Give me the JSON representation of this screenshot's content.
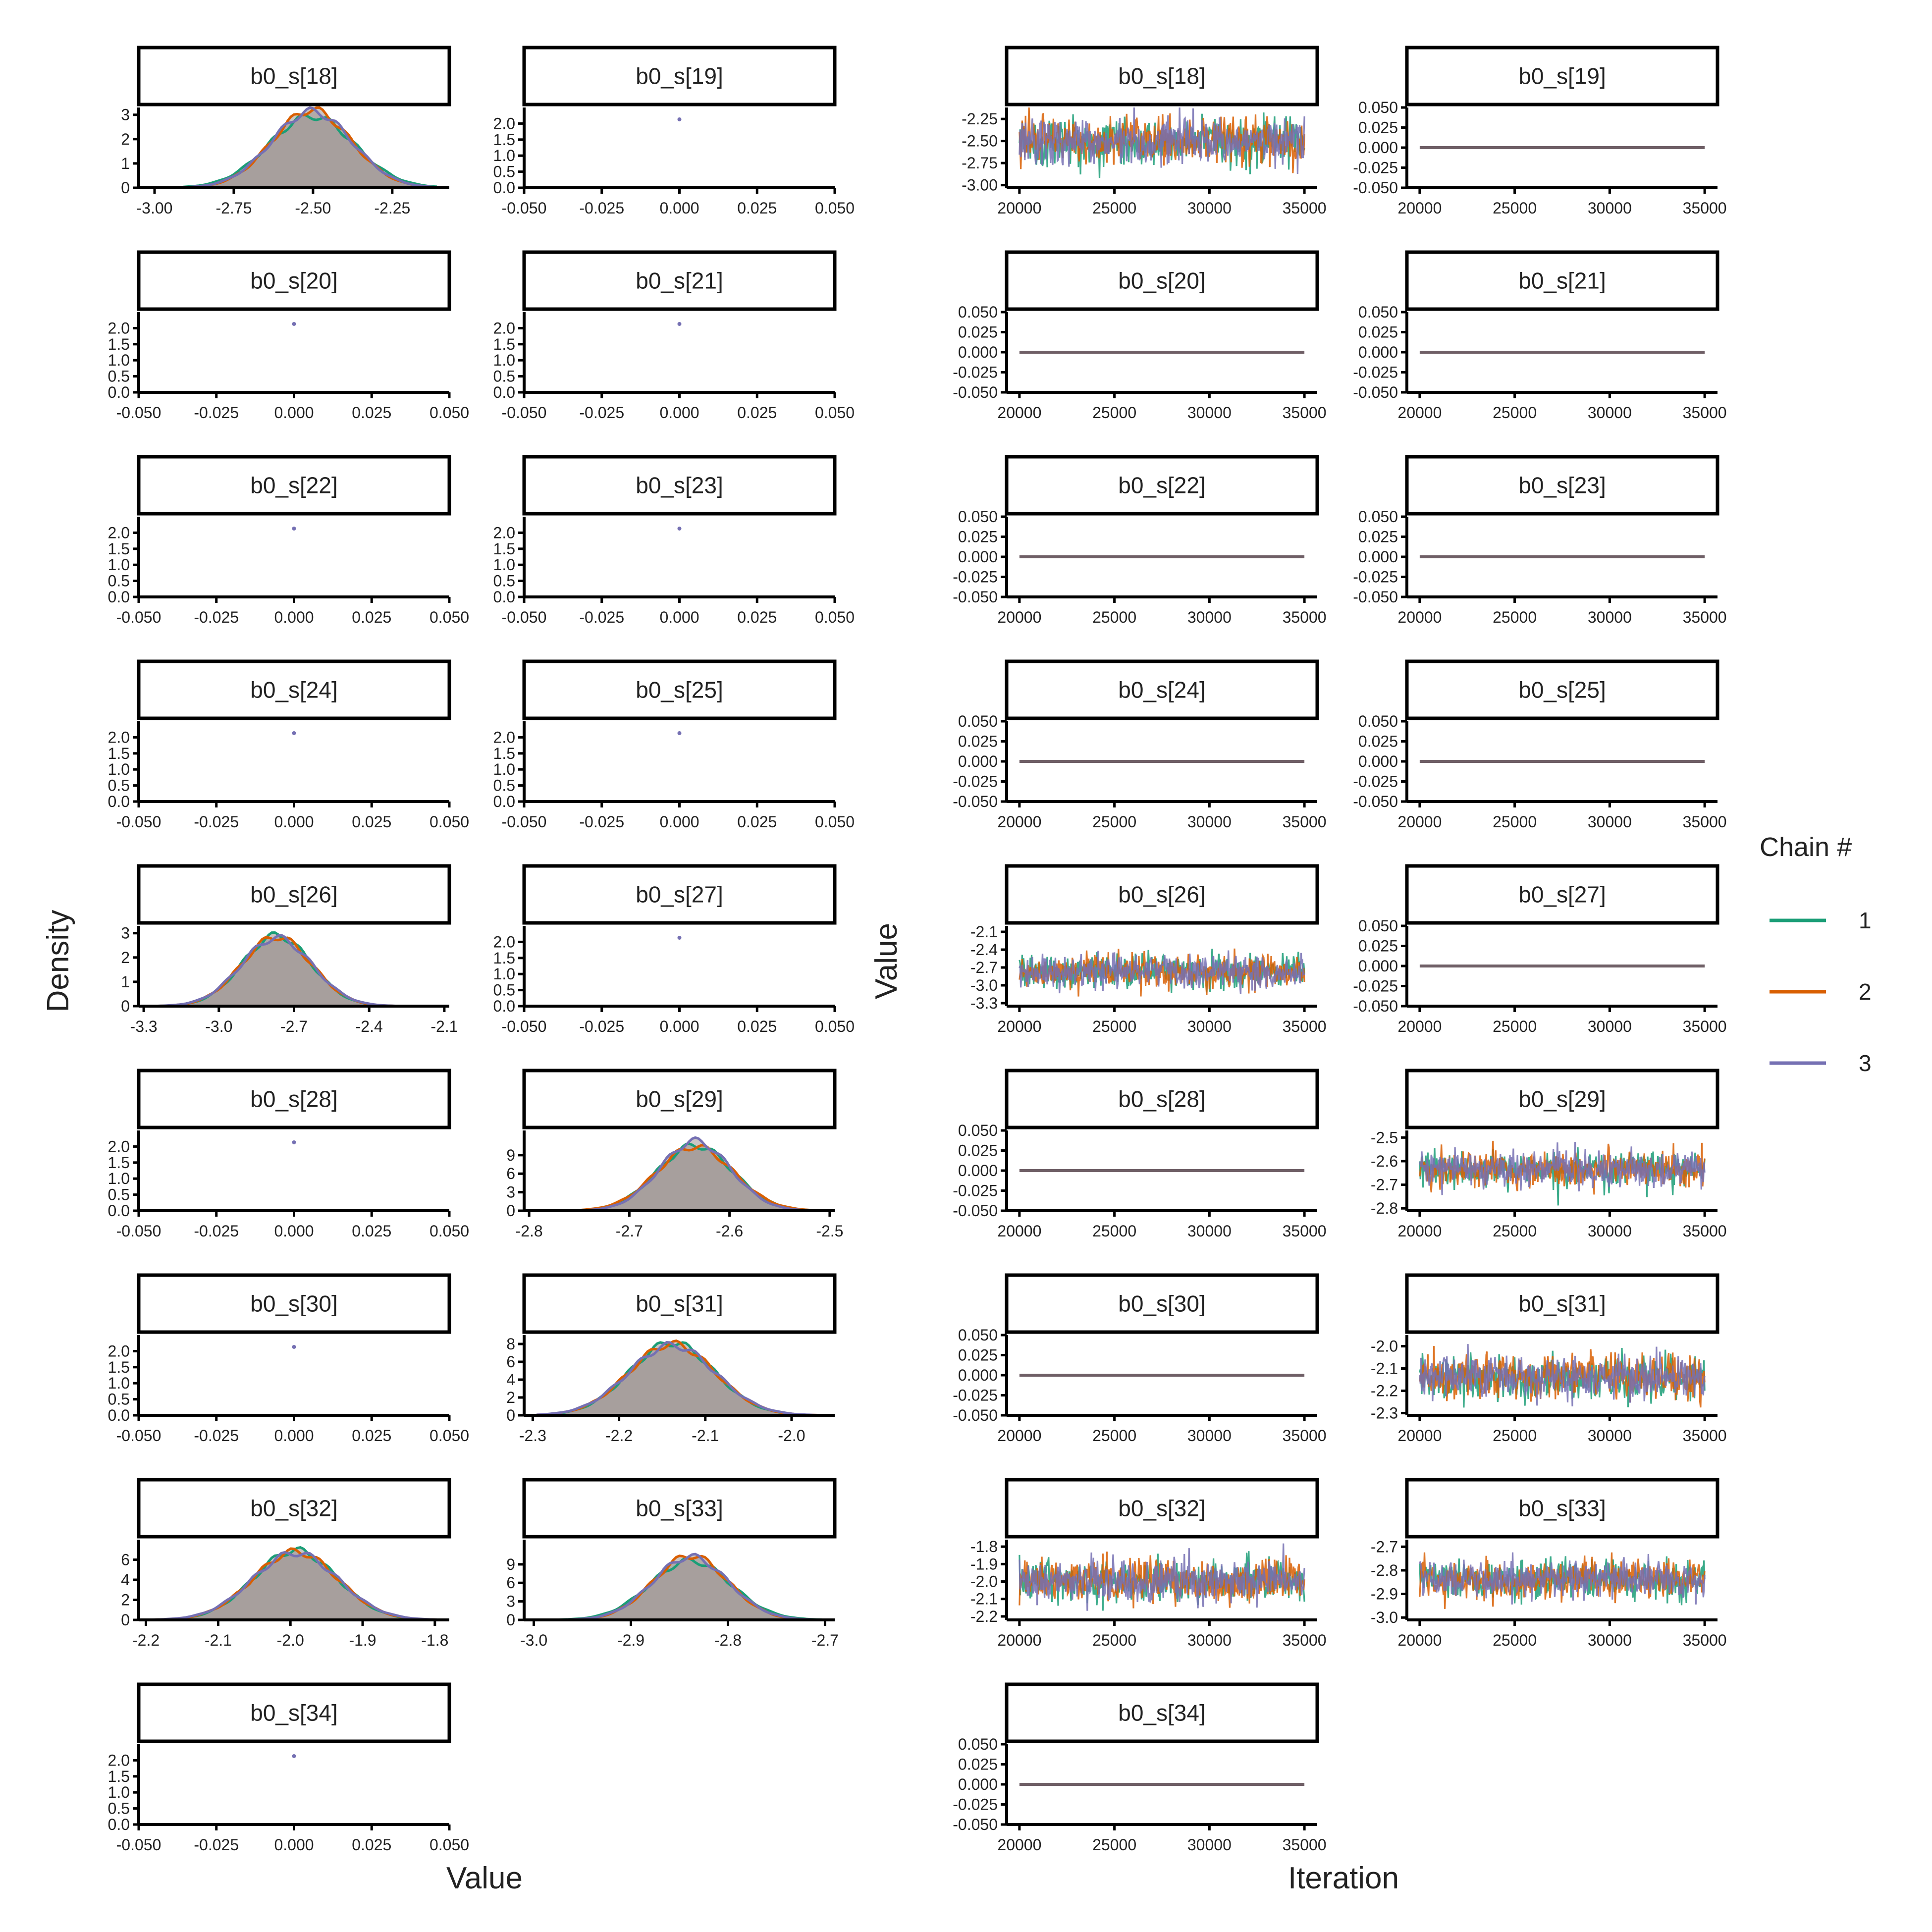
{
  "figure": {
    "density_xlabel": "Value",
    "density_ylabel": "Density",
    "trace_xlabel": "Iteration",
    "trace_ylabel": "Value",
    "legend_title": "Chain #",
    "chains": [
      {
        "label": "1",
        "color": "#1b9e77"
      },
      {
        "label": "2",
        "color": "#d95f02"
      },
      {
        "label": "3",
        "color": "#7570b3"
      }
    ],
    "fill_color": "#9e9694"
  },
  "chart_data": {
    "type": "mcmc-diagnostics",
    "parameters": [
      {
        "name": "b0_s[18]",
        "constant": false,
        "mean": -2.5,
        "sd": 0.13,
        "density_xlim": [
          -3.05,
          -2.07
        ],
        "density_xticks": [
          "-3.00",
          "-2.75",
          "-2.50",
          "-2.25"
        ],
        "density_ylim": [
          0,
          3.3
        ],
        "density_yticks": [
          "0",
          "1",
          "2",
          "3"
        ],
        "trace_ylim": [
          -3.03,
          -2.12
        ],
        "trace_yticks": [
          "-3.00",
          "-2.75",
          "-2.50",
          "-2.25"
        ]
      },
      {
        "name": "b0_s[19]",
        "constant": true
      },
      {
        "name": "b0_s[20]",
        "constant": true
      },
      {
        "name": "b0_s[21]",
        "constant": true
      },
      {
        "name": "b0_s[22]",
        "constant": true
      },
      {
        "name": "b0_s[23]",
        "constant": true
      },
      {
        "name": "b0_s[24]",
        "constant": true
      },
      {
        "name": "b0_s[25]",
        "constant": true
      },
      {
        "name": "b0_s[26]",
        "constant": false,
        "mean": -2.77,
        "sd": 0.14,
        "density_xlim": [
          -3.32,
          -2.08
        ],
        "density_xticks": [
          "-3.3",
          "-3.0",
          "-2.7",
          "-2.4",
          "-2.1"
        ],
        "density_ylim": [
          0,
          3.3
        ],
        "density_yticks": [
          "0",
          "1",
          "2",
          "3"
        ],
        "trace_ylim": [
          -3.35,
          -2.0
        ],
        "trace_yticks": [
          "-3.3",
          "-3.0",
          "-2.7",
          "-2.4",
          "-2.1"
        ]
      },
      {
        "name": "b0_s[27]",
        "constant": true
      },
      {
        "name": "b0_s[28]",
        "constant": true
      },
      {
        "name": "b0_s[29]",
        "constant": false,
        "mean": -2.635,
        "sd": 0.037,
        "density_xlim": [
          -2.805,
          -2.495
        ],
        "density_xticks": [
          "-2.8",
          "-2.7",
          "-2.6",
          "-2.5"
        ],
        "density_ylim": [
          0,
          13
        ],
        "density_yticks": [
          "0",
          "3",
          "6",
          "9"
        ],
        "trace_ylim": [
          -2.81,
          -2.47
        ],
        "trace_yticks": [
          "-2.8",
          "-2.7",
          "-2.6",
          "-2.5"
        ]
      },
      {
        "name": "b0_s[30]",
        "constant": true
      },
      {
        "name": "b0_s[31]",
        "constant": false,
        "mean": -2.14,
        "sd": 0.05,
        "density_xlim": [
          -2.31,
          -1.95
        ],
        "density_xticks": [
          "-2.3",
          "-2.2",
          "-2.1",
          "-2.0"
        ],
        "density_ylim": [
          0,
          9
        ],
        "density_yticks": [
          "0",
          "2",
          "4",
          "6",
          "8"
        ],
        "trace_ylim": [
          -2.31,
          -1.95
        ],
        "trace_yticks": [
          "-2.3",
          "-2.2",
          "-2.1",
          "-2.0"
        ]
      },
      {
        "name": "b0_s[32]",
        "constant": false,
        "mean": -1.995,
        "sd": 0.06,
        "density_xlim": [
          -2.21,
          -1.78
        ],
        "density_xticks": [
          "-2.2",
          "-2.1",
          "-2.0",
          "-1.9",
          "-1.8"
        ],
        "density_ylim": [
          0,
          8
        ],
        "density_yticks": [
          "0",
          "2",
          "4",
          "6"
        ],
        "trace_ylim": [
          -2.22,
          -1.76
        ],
        "trace_yticks": [
          "-2.2",
          "-2.1",
          "-2.0",
          "-1.9",
          "-1.8"
        ]
      },
      {
        "name": "b0_s[33]",
        "constant": false,
        "mean": -2.84,
        "sd": 0.04,
        "density_xlim": [
          -3.01,
          -2.69
        ],
        "density_xticks": [
          "-3.0",
          "-2.9",
          "-2.8",
          "-2.7"
        ],
        "density_ylim": [
          0,
          13
        ],
        "density_yticks": [
          "0",
          "3",
          "6",
          "9"
        ],
        "trace_ylim": [
          -3.01,
          -2.67
        ],
        "trace_yticks": [
          "-3.0",
          "-2.9",
          "-2.8",
          "-2.7"
        ]
      },
      {
        "name": "b0_s[34]",
        "constant": true
      }
    ],
    "constant_density_xlim": [
      -0.05,
      0.05
    ],
    "constant_density_xticks": [
      "-0.050",
      "-0.025",
      "0.000",
      "0.025",
      "0.050"
    ],
    "constant_density_ylim": [
      0,
      2.5
    ],
    "constant_density_yticks": [
      "0.0",
      "0.5",
      "1.0",
      "1.5",
      "2.0"
    ],
    "constant_density_point": 2.13,
    "constant_trace_ylim": [
      -0.05,
      0.05
    ],
    "constant_trace_yticks": [
      "-0.050",
      "-0.025",
      "0.000",
      "0.025",
      "0.050"
    ],
    "iteration_range": [
      20000,
      35000
    ],
    "iteration_ticks": [
      "20000",
      "25000",
      "30000",
      "35000"
    ]
  }
}
